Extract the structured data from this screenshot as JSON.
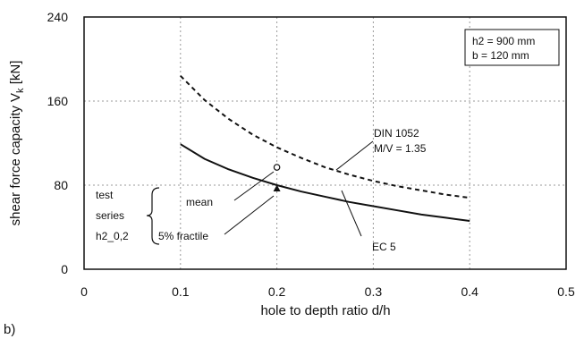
{
  "chart_data": {
    "type": "line",
    "panel_label": "b)",
    "xlabel": "hole to depth ratio d/h",
    "ylabel_main": "shear force capacity V",
    "ylabel_sub": "k",
    "ylabel_unit": " [kN]",
    "xlim": [
      0,
      0.5
    ],
    "ylim": [
      0,
      240
    ],
    "x_ticks": [
      0,
      0.1,
      0.2,
      0.3,
      0.4,
      0.5
    ],
    "x_tick_labels": [
      "0",
      "0.1",
      "0.2",
      "0.3",
      "0.4",
      "0.5"
    ],
    "y_ticks": [
      0,
      80,
      160,
      240
    ],
    "y_tick_labels": [
      "0",
      "80",
      "160",
      "240"
    ],
    "grid": true,
    "info_box": [
      "h2 = 900 mm",
      "b = 120 mm"
    ],
    "series": [
      {
        "name": "DIN 1052 M/V = 1.35",
        "style": "dashed",
        "x": [
          0.1,
          0.125,
          0.15,
          0.175,
          0.2,
          0.225,
          0.25,
          0.275,
          0.3,
          0.325,
          0.35,
          0.375,
          0.4
        ],
        "y": [
          184,
          161,
          143,
          128,
          116,
          106,
          97,
          90,
          84,
          79,
          75,
          71,
          68
        ]
      },
      {
        "name": "EC 5",
        "style": "solid",
        "x": [
          0.1,
          0.125,
          0.15,
          0.175,
          0.2,
          0.225,
          0.25,
          0.275,
          0.3,
          0.325,
          0.35,
          0.375,
          0.4
        ],
        "y": [
          119,
          105,
          95,
          87,
          80,
          74,
          69,
          64,
          60,
          56,
          52,
          49,
          46
        ]
      }
    ],
    "points": [
      {
        "label": "mean",
        "marker": "circle",
        "x": 0.2,
        "y": 97
      },
      {
        "label": "5% fractile",
        "marker": "triangle",
        "x": 0.2,
        "y": 77
      }
    ],
    "annotations": {
      "din_line1": "DIN 1052",
      "din_line2": "M/V = 1.35",
      "ec5": "EC 5",
      "test_series": [
        "test",
        "series",
        "h2_0,2"
      ]
    },
    "colors": {
      "line": "#111111",
      "grid": "#9a9a9a",
      "background": "#ffffff"
    }
  }
}
